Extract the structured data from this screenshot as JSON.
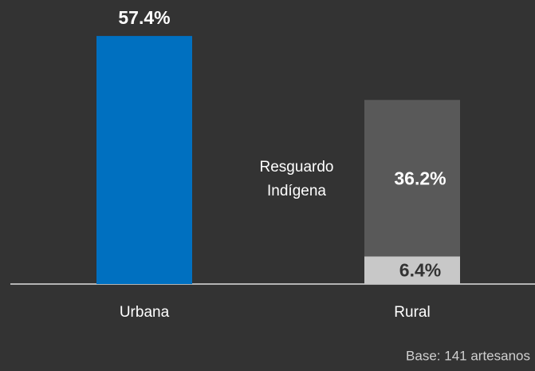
{
  "chart_data": {
    "type": "stacked_bar",
    "categories": [
      "Urbana",
      "Rural"
    ],
    "series": [
      {
        "color": "#0070c0",
        "values": [
          57.4,
          null
        ],
        "value_labels": [
          "57.4%",
          null
        ]
      },
      {
        "color": "#c8c8c8",
        "values": [
          null,
          6.4
        ],
        "value_labels": [
          null,
          "6.4%"
        ]
      },
      {
        "name": "Resguardo Indígena",
        "color": "#595959",
        "values": [
          null,
          36.2
        ],
        "value_labels": [
          null,
          "36.2%"
        ]
      }
    ],
    "ylim": [
      0,
      60
    ],
    "note": "Base: 141 artesanos"
  }
}
